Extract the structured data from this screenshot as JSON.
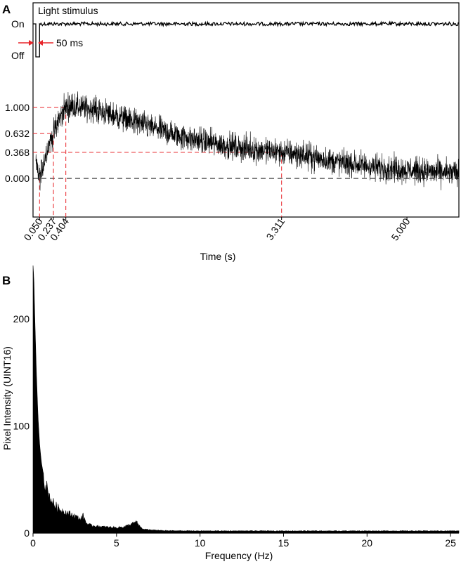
{
  "colors": {
    "signal": "#000000",
    "annotation": "#e8262b",
    "zero_line": "#000000",
    "background": "#ffffff"
  },
  "chart_data": [
    {
      "panel": "A",
      "type": "line",
      "xlabel": "Time (s)",
      "ylabel": "",
      "xlim": [
        0.0,
        5.7
      ],
      "ylim": [
        -0.35,
        1.35
      ],
      "grid": false,
      "legend": "none",
      "stimulus": {
        "label": "Light stimulus",
        "levels": [
          "On",
          "Off"
        ],
        "pulse_label": "50 ms",
        "pulse_start": 0.0,
        "pulse_end": 0.05
      },
      "x_ticks": [
        {
          "value": 0.05,
          "label": "0.050"
        },
        {
          "value": 0.237,
          "label": "0.237"
        },
        {
          "value": 0.404,
          "label": "0.404"
        },
        {
          "value": 3.311,
          "label": "3.311"
        },
        {
          "value": 5.0,
          "label": "5.000"
        }
      ],
      "y_ticks": [
        {
          "value": 1.0,
          "label": "1.000"
        },
        {
          "value": 0.632,
          "label": "0.632"
        },
        {
          "value": 0.368,
          "label": "0.368"
        },
        {
          "value": 0.0,
          "label": "0.000"
        }
      ],
      "reference_points": [
        {
          "x": 0.05,
          "y": 0.0
        },
        {
          "x": 0.237,
          "y": 0.632
        },
        {
          "x": 0.404,
          "y": 1.0
        },
        {
          "x": 3.311,
          "y": 0.368
        }
      ],
      "series": [
        {
          "style": "noisy-trace",
          "x": [
            0.0,
            0.05,
            0.1,
            0.15,
            0.2,
            0.237,
            0.3,
            0.35,
            0.404,
            0.5,
            0.6,
            0.8,
            1.0,
            1.2,
            1.5,
            1.8,
            2.0,
            2.5,
            3.0,
            3.311,
            3.6,
            4.0,
            4.5,
            5.0,
            5.5,
            5.7
          ],
          "values": [
            0.2,
            0.0,
            0.2,
            0.4,
            0.55,
            0.632,
            0.8,
            0.92,
            1.0,
            1.02,
            1.0,
            0.97,
            0.9,
            0.84,
            0.74,
            0.64,
            0.58,
            0.47,
            0.4,
            0.368,
            0.33,
            0.24,
            0.17,
            0.12,
            0.08,
            0.07
          ],
          "noise_amplitude": 0.13
        }
      ]
    },
    {
      "panel": "B",
      "type": "area",
      "xlabel": "Frequency (Hz)",
      "ylabel": "Pixel Intensity (UINT16)",
      "xlim": [
        0,
        25.5
      ],
      "ylim": [
        0,
        250
      ],
      "grid": false,
      "legend": "none",
      "x_ticks": [
        0,
        5,
        10,
        15,
        20,
        25
      ],
      "y_ticks": [
        0,
        100,
        200
      ],
      "series": [
        {
          "x": [
            0.0,
            0.05,
            0.1,
            0.2,
            0.3,
            0.4,
            0.5,
            0.7,
            0.9,
            1.0,
            1.3,
            1.6,
            2.0,
            2.5,
            2.8,
            3.0,
            3.2,
            3.5,
            4.0,
            4.5,
            5.0,
            5.5,
            6.0,
            6.2,
            6.4,
            6.6,
            7.0,
            7.5,
            8.0,
            10.0,
            15.0,
            20.0,
            25.0,
            25.5
          ],
          "values": [
            250,
            238,
            205,
            150,
            108,
            82,
            66,
            48,
            38,
            33,
            26,
            22,
            19,
            16,
            13,
            16,
            9,
            7,
            6,
            5.5,
            5,
            6,
            9,
            10,
            6,
            3.5,
            3,
            2.5,
            2.2,
            2,
            2,
            2,
            2,
            2
          ]
        }
      ]
    }
  ]
}
